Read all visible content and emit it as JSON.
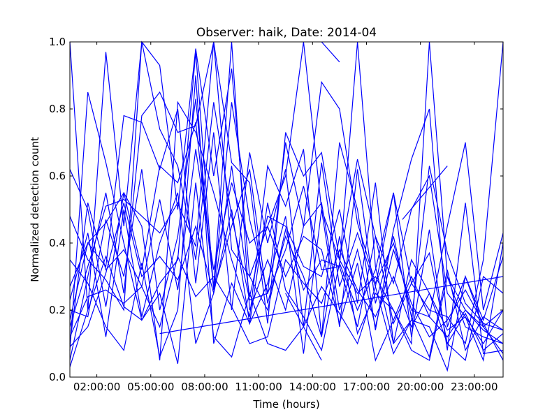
{
  "chart_data": {
    "type": "line",
    "title": "Observer: haik, Date: 2014-04",
    "xlabel": "Time (hours)",
    "ylabel": "Normalized detection count",
    "xlim": [
      0.5,
      24.6
    ],
    "ylim": [
      0.0,
      1.0
    ],
    "x_ticks": [
      {
        "value": 2,
        "label": "02:00:00"
      },
      {
        "value": 5,
        "label": "05:00:00"
      },
      {
        "value": 8,
        "label": "08:00:00"
      },
      {
        "value": 11,
        "label": "11:00:00"
      },
      {
        "value": 14,
        "label": "14:00:00"
      },
      {
        "value": 17,
        "label": "17:00:00"
      },
      {
        "value": 20,
        "label": "20:00:00"
      },
      {
        "value": 23,
        "label": "23:00:00"
      }
    ],
    "y_ticks": [
      {
        "value": 0.0,
        "label": "0.0"
      },
      {
        "value": 0.2,
        "label": "0.2"
      },
      {
        "value": 0.4,
        "label": "0.4"
      },
      {
        "value": 0.6,
        "label": "0.6"
      },
      {
        "value": 0.8,
        "label": "0.8"
      },
      {
        "value": 1.0,
        "label": "1.0"
      }
    ],
    "grid": false,
    "legend": "none",
    "line_color": "#0000ff",
    "series": [
      {
        "x": [
          0.5,
          1.5,
          2.5,
          3.5,
          4.5,
          5.5,
          6.5,
          7.5,
          8.5,
          9.5,
          10.5,
          11.5,
          12.5,
          13.5,
          14.5,
          15.5,
          16.5,
          17.5,
          18.5,
          19.5,
          20.5,
          21.5,
          22.5,
          23.5,
          24.6
        ],
        "y": [
          1.0,
          0.2,
          0.97,
          0.45,
          1.0,
          0.93,
          0.5,
          0.98,
          0.6,
          0.92,
          0.3,
          0.45,
          0.6,
          1.0,
          0.5,
          0.35,
          0.25,
          0.3,
          0.2,
          0.1,
          1.0,
          0.3,
          0.2,
          0.15,
          0.2
        ]
      },
      {
        "x": [
          0.5,
          1.5,
          2.5,
          3.5,
          4.5,
          5.5,
          6.5,
          7.5,
          8.5,
          9.5,
          10.5,
          11.5,
          12.5,
          13.5,
          14.5,
          15.5,
          16.5,
          17.5,
          18.5,
          19.5,
          20.5,
          21.5,
          22.5,
          23.5,
          24.6
        ],
        "y": [
          0.05,
          0.3,
          0.55,
          0.25,
          0.78,
          0.85,
          0.73,
          0.75,
          1.0,
          0.64,
          0.58,
          0.16,
          0.73,
          0.6,
          0.67,
          0.35,
          0.65,
          0.42,
          0.28,
          0.5,
          0.6,
          0.25,
          0.18,
          0.1,
          0.2
        ]
      },
      {
        "x": [
          0.5,
          1.5,
          2.5,
          3.5,
          4.5,
          5.5,
          6.5,
          7.5,
          8.5,
          9.5,
          10.5,
          11.5,
          12.5,
          13.5,
          14.5,
          15.5,
          16.5,
          17.5,
          18.5,
          19.5,
          20.5,
          21.5,
          22.5,
          23.5,
          24.6
        ],
        "y": [
          0.62,
          0.5,
          0.21,
          0.55,
          0.32,
          0.63,
          0.58,
          0.76,
          0.27,
          1.0,
          0.2,
          0.35,
          0.2,
          0.45,
          0.52,
          0.2,
          0.38,
          0.15,
          0.38,
          0.22,
          0.12,
          0.17,
          0.26,
          0.16,
          0.14
        ]
      },
      {
        "x": [
          0.5,
          1.5,
          2.5,
          3.5,
          4.5,
          5.5,
          6.5,
          7.5,
          8.5,
          9.5,
          10.5,
          11.5,
          12.5,
          13.5,
          14.5,
          15.5,
          16.5,
          17.5,
          18.5,
          19.5,
          20.5,
          21.5,
          22.5,
          23.5,
          24.6
        ],
        "y": [
          0.48,
          0.35,
          0.29,
          0.2,
          1.0,
          0.74,
          0.63,
          0.35,
          0.82,
          0.48,
          0.23,
          0.25,
          0.7,
          0.45,
          0.88,
          0.8,
          0.46,
          0.28,
          0.4,
          0.2,
          0.18,
          0.12,
          0.2,
          0.14,
          0.1
        ]
      },
      {
        "x": [
          0.5,
          1.5,
          2.5,
          3.5,
          4.5,
          5.5,
          6.5,
          7.5,
          8.5,
          9.5,
          10.5,
          11.5,
          12.5,
          13.5,
          14.5,
          15.5,
          16.5,
          17.5,
          18.5,
          19.5,
          20.5,
          21.5,
          22.5,
          23.5,
          24.6
        ],
        "y": [
          0.17,
          0.4,
          0.33,
          0.78,
          0.76,
          0.62,
          0.8,
          0.28,
          0.73,
          0.2,
          0.67,
          0.4,
          0.62,
          0.15,
          0.64,
          0.27,
          0.43,
          0.27,
          0.55,
          0.28,
          0.37,
          0.1,
          0.19,
          0.08,
          0.13
        ]
      },
      {
        "x": [
          0.5,
          1.5,
          2.5,
          3.5,
          4.5,
          5.5,
          6.5,
          7.5,
          8.5,
          9.5,
          10.5,
          11.5,
          12.5,
          13.5,
          14.5,
          15.5,
          16.5,
          17.5,
          18.5,
          19.5,
          20.5,
          21.5,
          22.5,
          23.5,
          24.6
        ],
        "y": [
          0.23,
          0.43,
          0.12,
          0.5,
          0.18,
          0.4,
          0.55,
          0.1,
          0.25,
          0.5,
          0.16,
          0.28,
          0.48,
          0.07,
          0.5,
          0.15,
          0.62,
          0.22,
          0.42,
          0.18,
          0.06,
          0.32,
          0.08,
          0.18,
          0.14
        ]
      },
      {
        "x": [
          0.5,
          1.5,
          2.5,
          3.5,
          4.5,
          5.5,
          6.5,
          7.5,
          8.5,
          9.5,
          10.5,
          11.5,
          12.5,
          13.5,
          14.5,
          15.5,
          16.5,
          17.5,
          18.5,
          19.5,
          20.5,
          21.5,
          22.5,
          23.5,
          24.6
        ],
        "y": [
          0.09,
          0.15,
          0.31,
          0.52,
          0.3,
          0.36,
          0.29,
          0.45,
          0.25,
          0.63,
          0.24,
          0.48,
          0.45,
          0.33,
          0.3,
          0.5,
          0.22,
          0.58,
          0.1,
          0.35,
          0.25,
          0.1,
          0.05,
          0.3,
          0.25
        ]
      },
      {
        "x": [
          0.5,
          1.5,
          2.5,
          3.5,
          4.5,
          5.5,
          6.5,
          7.5,
          8.5,
          9.5,
          10.5,
          11.5,
          12.5,
          13.5,
          14.5,
          15.5,
          16.5,
          17.5,
          18.5,
          19.5,
          20.5,
          21.5,
          22.5,
          23.5,
          24.6
        ],
        "y": [
          0.2,
          0.18,
          0.47,
          0.3,
          0.62,
          0.2,
          0.42,
          0.83,
          0.26,
          0.45,
          0.62,
          0.22,
          0.42,
          0.3,
          0.12,
          0.42,
          0.13,
          0.25,
          0.2,
          0.08,
          0.05,
          0.3,
          0.15,
          0.12,
          0.1
        ]
      },
      {
        "x": [
          0.5,
          1.5,
          2.5,
          3.5,
          4.5,
          5.5,
          6.5,
          7.5,
          8.5,
          9.5,
          10.5,
          11.5,
          12.5,
          13.5,
          14.5,
          15.5,
          16.5,
          17.5,
          18.5,
          19.5,
          20.5,
          21.5,
          22.5,
          23.5,
          24.6
        ],
        "y": [
          0.35,
          0.28,
          0.15,
          0.08,
          0.34,
          0.06,
          0.2,
          0.9,
          0.1,
          0.28,
          0.16,
          0.52,
          0.26,
          0.18,
          0.08,
          0.34,
          0.2,
          0.32,
          0.55,
          0.12,
          0.44,
          0.08,
          0.52,
          0.07,
          0.08
        ]
      },
      {
        "x": [
          0.5,
          1.5,
          2.5,
          3.5,
          4.5,
          5.5,
          6.5,
          7.5,
          8.5,
          9.5,
          10.5,
          11.5,
          12.5,
          13.5,
          14.5,
          15.5,
          16.5,
          17.5,
          18.5,
          19.5,
          20.5,
          21.5,
          22.5,
          23.5,
          24.6
        ],
        "y": [
          0.12,
          0.24,
          0.26,
          0.22,
          0.27,
          0.15,
          0.36,
          0.24,
          0.3,
          0.21,
          0.1,
          0.12,
          0.35,
          0.28,
          0.22,
          0.38,
          0.26,
          0.18,
          0.3,
          0.15,
          0.25,
          0.14,
          0.18,
          0.05,
          0.4
        ]
      },
      {
        "x": [
          0.5,
          1.5,
          2.5,
          3.5,
          4.5,
          5.5,
          6.5,
          7.5,
          8.5,
          9.5,
          10.5,
          11.5,
          12.5,
          13.5,
          14.5,
          15.5,
          16.5,
          17.5,
          18.5,
          19.5,
          20.5,
          21.5,
          22.5,
          23.5,
          24.6
        ],
        "y": [
          0.03,
          0.2,
          0.36,
          0.21,
          0.17,
          0.25,
          0.04,
          0.58,
          0.12,
          0.06,
          0.25,
          0.1,
          0.08,
          0.15,
          0.27,
          0.19,
          0.1,
          0.27,
          0.07,
          0.17,
          0.15,
          0.02,
          0.3,
          0.15,
          0.07
        ]
      },
      {
        "x": [
          0.5,
          1.5,
          2.5,
          3.5,
          4.5,
          5.5,
          6.5,
          7.5,
          8.5,
          9.5,
          10.5,
          11.5,
          12.5,
          13.5,
          14.5,
          15.5,
          16.5,
          17.5,
          18.5,
          19.5,
          20.5,
          21.5,
          22.5,
          23.5,
          24.6
        ],
        "y": [
          0.27,
          0.4,
          0.46,
          0.55,
          0.45,
          0.05,
          0.82,
          0.73,
          0.55,
          0.35,
          0.18,
          0.63,
          0.51,
          0.68,
          0.12,
          0.7,
          0.5,
          0.14,
          0.44,
          0.65,
          0.8,
          0.15,
          0.3,
          0.17,
          0.36
        ]
      },
      {
        "x": [
          0.5,
          1.5,
          2.5,
          3.5,
          4.5,
          5.5,
          6.5,
          7.5,
          8.5,
          9.5,
          10.5,
          11.5,
          12.5,
          13.5,
          14.5,
          15.5,
          16.5,
          17.5,
          18.5,
          19.5,
          20.5,
          21.5,
          22.5,
          23.5,
          24.6
        ],
        "y": [
          0.1,
          0.52,
          0.32,
          0.38,
          0.27,
          0.53,
          0.26,
          0.68,
          0.32,
          0.58,
          0.4,
          0.45,
          0.3,
          0.42,
          0.38,
          0.16,
          0.34,
          0.05,
          0.17,
          0.3,
          0.18,
          0.45,
          0.7,
          0.2,
          0.43
        ]
      },
      {
        "x": [
          0.5,
          1.5,
          2.5,
          3.5,
          4.5,
          5.5,
          6.5,
          7.5,
          8.5,
          9.5,
          10.5,
          11.5,
          12.5,
          13.5,
          14.5,
          15.5,
          16.5,
          17.5,
          18.5,
          19.5,
          20.5,
          21.5,
          22.5,
          23.5,
          24.6
        ],
        "y": [
          0.15,
          0.33,
          0.51,
          0.53,
          0.48,
          0.43,
          0.52,
          0.39,
          1.0,
          0.38,
          0.3,
          0.2,
          0.44,
          0.26,
          0.35,
          0.33,
          0.15,
          0.42,
          0.16,
          0.28,
          0.2,
          0.18,
          0.1,
          0.35,
          1.0
        ]
      },
      {
        "x": [
          0.5,
          1.5,
          2.5,
          3.5,
          4.5,
          5.5,
          6.5,
          7.5,
          8.5,
          9.5,
          10.5,
          11.5,
          12.5,
          13.5,
          14.5,
          15.5,
          16.5,
          17.5,
          18.5,
          19.5,
          20.5,
          21.5,
          22.5,
          23.5,
          24.6
        ],
        "y": [
          0.08,
          0.85,
          0.64,
          0.4,
          0.17,
          0.28,
          0.35,
          0.97,
          0.26,
          0.82,
          0.47,
          0.25,
          0.38,
          0.57,
          0.32,
          0.33,
          1.0,
          0.33,
          0.1,
          0.17,
          0.63,
          0.37,
          0.22,
          0.16,
          0.05
        ]
      },
      {
        "x": [
          19.0,
          21.5
        ],
        "y": [
          0.47,
          0.63
        ]
      },
      {
        "x": [
          14.5,
          15.5
        ],
        "y": [
          1.0,
          0.94
        ]
      },
      {
        "x": [
          12.5,
          14.5
        ],
        "y": [
          0.25,
          0.05
        ]
      },
      {
        "x": [
          5.5,
          24.6
        ],
        "y": [
          0.13,
          0.3
        ]
      }
    ]
  }
}
